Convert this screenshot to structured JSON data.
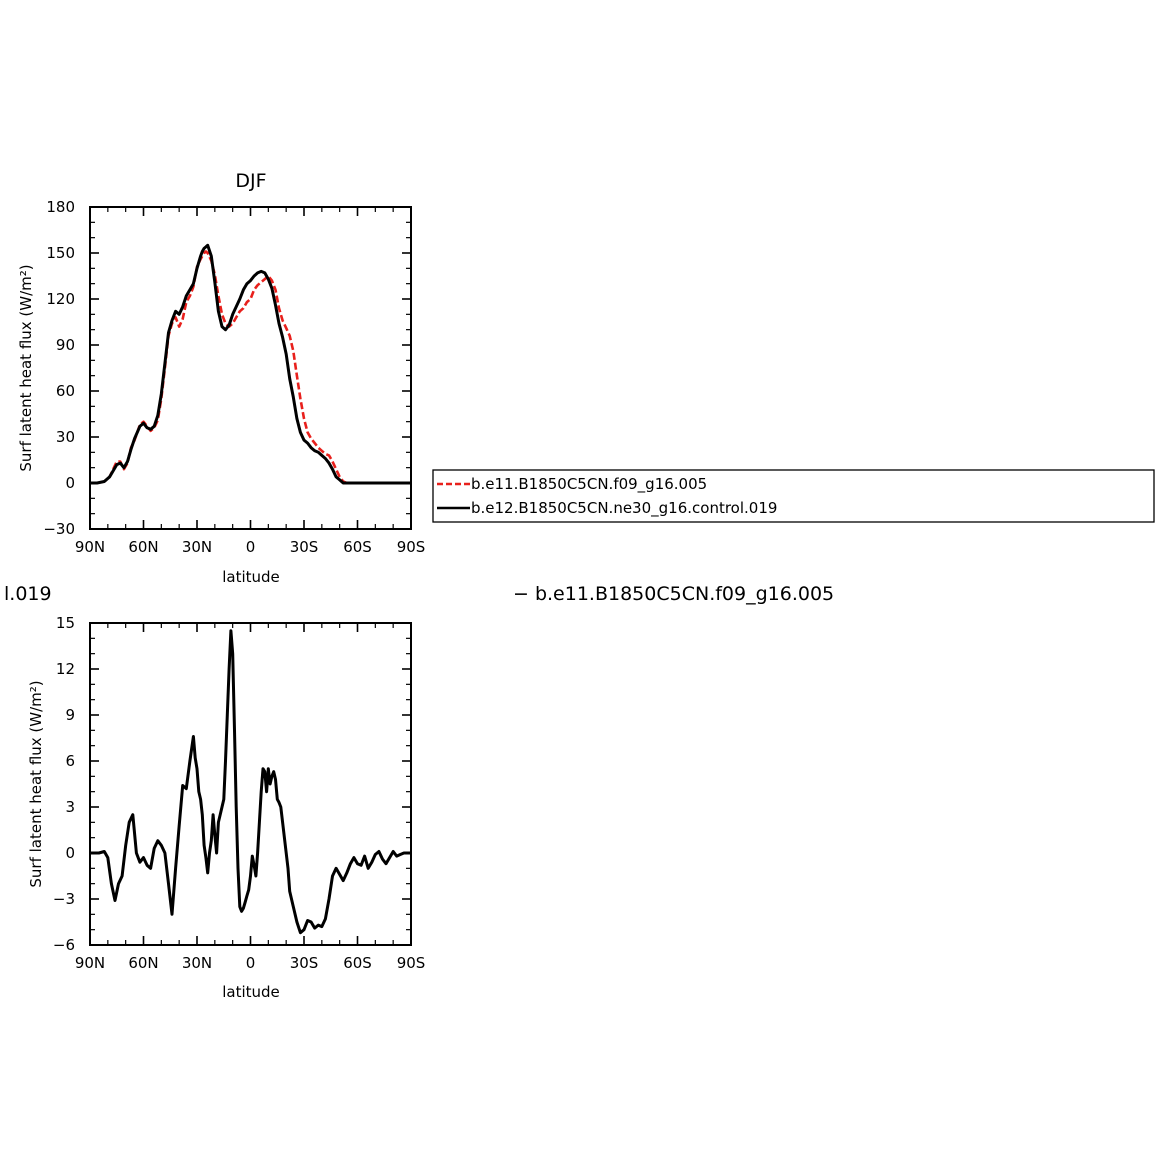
{
  "chart_data": [
    {
      "type": "line",
      "title": "DJF",
      "xlabel": "latitude",
      "ylabel": "Surf latent heat flux (W/m²)",
      "xlim": [
        90,
        -90
      ],
      "ylim": [
        -30,
        180
      ],
      "x_ticks": [
        90,
        60,
        30,
        0,
        -30,
        -60,
        -90
      ],
      "x_tick_labels": [
        "90N",
        "60N",
        "30N",
        "0",
        "30S",
        "60S",
        "90S"
      ],
      "y_ticks": [
        -30,
        0,
        30,
        60,
        90,
        120,
        150,
        180
      ],
      "y_tick_labels": [
        "−30",
        "0",
        "30",
        "60",
        "90",
        "120",
        "150",
        "180"
      ],
      "legend_position": "right",
      "series": [
        {
          "name": "b.e11.B1850C5CN.f09_g16.005",
          "color": "#e8201c",
          "dash": "dashed",
          "x": [
            90,
            86,
            82,
            79,
            77,
            75,
            73,
            71,
            69,
            67,
            65,
            62,
            60,
            58,
            56,
            54,
            52,
            50,
            48,
            46,
            44,
            42,
            40,
            38,
            36,
            34,
            32,
            30,
            28,
            27,
            26,
            25,
            24,
            22,
            20,
            18,
            16,
            14,
            12,
            10,
            8,
            6,
            4,
            2,
            0,
            -2,
            -4,
            -6,
            -8,
            -10,
            -12,
            -14,
            -16,
            -18,
            -20,
            -22,
            -24,
            -26,
            -28,
            -30,
            -32,
            -34,
            -36,
            -38,
            -40,
            -42,
            -44,
            -46,
            -48,
            -50,
            -52,
            -54,
            -56,
            -58,
            -60,
            -62,
            -64,
            -66,
            -68,
            -70,
            -72,
            -74,
            -76,
            -78,
            -80,
            -82,
            -84,
            -86,
            -88,
            -90
          ],
          "y": [
            0,
            0,
            1,
            4,
            9,
            14,
            14,
            9,
            13,
            23,
            28,
            38,
            40,
            37,
            34,
            36,
            41,
            55,
            75,
            96,
            104,
            108,
            102,
            107,
            118,
            122,
            128,
            141,
            146,
            148,
            150,
            151,
            150,
            145,
            136,
            122,
            110,
            104,
            102,
            104,
            108,
            112,
            114,
            118,
            120,
            126,
            129,
            131,
            133,
            135,
            132,
            126,
            114,
            106,
            101,
            96,
            86,
            70,
            55,
            42,
            33,
            29,
            26,
            23,
            21,
            19,
            18,
            14,
            9,
            4,
            1,
            0,
            0,
            0,
            0,
            0,
            0,
            0,
            0,
            0,
            0,
            0,
            0,
            0,
            0,
            0,
            0,
            0,
            0,
            0
          ]
        },
        {
          "name": "b.e12.B1850C5CN.ne30_g16.control.019",
          "color": "#000000",
          "dash": "solid",
          "x": [
            90,
            86,
            82,
            79,
            77,
            75,
            73,
            71,
            69,
            67,
            65,
            62,
            60,
            58,
            56,
            54,
            52,
            50,
            48,
            46,
            44,
            42,
            40,
            38,
            36,
            34,
            32,
            30,
            28,
            27,
            26,
            25,
            24,
            22,
            20,
            18,
            16,
            14,
            12,
            10,
            8,
            6,
            4,
            2,
            0,
            -2,
            -4,
            -6,
            -8,
            -10,
            -12,
            -14,
            -16,
            -18,
            -20,
            -22,
            -24,
            -26,
            -28,
            -30,
            -32,
            -34,
            -36,
            -38,
            -40,
            -42,
            -44,
            -46,
            -48,
            -50,
            -52,
            -54,
            -56,
            -58,
            -60,
            -62,
            -64,
            -66,
            -68,
            -70,
            -72,
            -74,
            -76,
            -78,
            -80,
            -82,
            -84,
            -86,
            -88,
            -90
          ],
          "y": [
            0,
            0,
            1,
            4,
            8,
            12,
            13,
            10,
            14,
            22,
            29,
            37,
            39,
            36,
            35,
            37,
            44,
            58,
            78,
            98,
            106,
            112,
            110,
            115,
            122,
            126,
            130,
            140,
            148,
            151,
            153,
            154,
            155,
            148,
            131,
            112,
            102,
            100,
            103,
            110,
            115,
            120,
            126,
            130,
            132,
            135,
            137,
            138,
            137,
            133,
            127,
            116,
            104,
            95,
            84,
            68,
            56,
            42,
            33,
            28,
            26,
            23,
            21,
            20,
            18,
            16,
            13,
            9,
            4,
            2,
            0,
            0,
            0,
            0,
            0,
            0,
            0,
            0,
            0,
            0,
            0,
            0,
            0,
            0,
            0,
            0,
            0,
            0,
            0,
            0
          ]
        }
      ]
    },
    {
      "type": "line",
      "title": "l.019",
      "title_right": "− b.e11.B1850C5CN.f09_g16.005",
      "xlabel": "latitude",
      "ylabel": "Surf latent heat flux (W/m²)",
      "xlim": [
        90,
        -90
      ],
      "ylim": [
        -6,
        15
      ],
      "x_ticks": [
        90,
        60,
        30,
        0,
        -30,
        -60,
        -90
      ],
      "x_tick_labels": [
        "90N",
        "60N",
        "30N",
        "0",
        "30S",
        "60S",
        "90S"
      ],
      "y_ticks": [
        -6,
        -3,
        0,
        3,
        6,
        9,
        12,
        15
      ],
      "y_tick_labels": [
        "−6",
        "−3",
        "0",
        "3",
        "6",
        "9",
        "12",
        "15"
      ],
      "series": [
        {
          "color": "#000000",
          "dash": "solid",
          "x": [
            90,
            85,
            82,
            80,
            78,
            76,
            74,
            72,
            70,
            68,
            66,
            64,
            62,
            60,
            58,
            56,
            54,
            52,
            50,
            48,
            46,
            44,
            42,
            40,
            38,
            36,
            34,
            32,
            31,
            30,
            29,
            28,
            27,
            26,
            25,
            24,
            23,
            22,
            21,
            20,
            19,
            18,
            17,
            16,
            15,
            14,
            13,
            12,
            11,
            10,
            9,
            8,
            7,
            6,
            5,
            4,
            3,
            2,
            1,
            0,
            -1,
            -2,
            -3,
            -4,
            -5,
            -6,
            -7,
            -8,
            -9,
            -10,
            -11,
            -12,
            -13,
            -14,
            -15,
            -16,
            -17,
            -18,
            -19,
            -20,
            -21,
            -22,
            -24,
            -26,
            -28,
            -30,
            -32,
            -34,
            -36,
            -38,
            -40,
            -42,
            -44,
            -46,
            -48,
            -50,
            -52,
            -54,
            -56,
            -58,
            -60,
            -62,
            -64,
            -66,
            -68,
            -70,
            -72,
            -74,
            -76,
            -78,
            -80,
            -82,
            -84,
            -86,
            -88,
            -90
          ],
          "y": [
            0,
            0,
            0.1,
            -0.3,
            -2.0,
            -3.1,
            -2.0,
            -1.5,
            0.5,
            2.0,
            2.5,
            0.0,
            -0.6,
            -0.3,
            -0.8,
            -1.0,
            0.3,
            0.8,
            0.5,
            0.0,
            -2.0,
            -4.0,
            -1.0,
            1.8,
            4.4,
            4.2,
            6.0,
            7.6,
            6.2,
            5.5,
            4.0,
            3.5,
            2.5,
            0.5,
            -0.3,
            -1.3,
            0.0,
            0.8,
            2.5,
            1.2,
            0.0,
            2.0,
            2.5,
            3.0,
            3.5,
            6.0,
            9.0,
            12.0,
            14.5,
            13.0,
            8.0,
            3.0,
            -1.0,
            -3.5,
            -3.8,
            -3.6,
            -3.2,
            -2.8,
            -2.4,
            -1.5,
            -0.2,
            -0.8,
            -1.5,
            0.0,
            2.0,
            4.0,
            5.5,
            5.3,
            4.0,
            5.5,
            4.5,
            5.0,
            5.3,
            4.8,
            3.5,
            3.3,
            3.0,
            2.0,
            1.0,
            0.0,
            -1.0,
            -2.5,
            -3.5,
            -4.5,
            -5.2,
            -5.0,
            -4.4,
            -4.5,
            -4.9,
            -4.7,
            -4.8,
            -4.3,
            -3.0,
            -1.5,
            -1.0,
            -1.4,
            -1.8,
            -1.3,
            -0.7,
            -0.3,
            -0.7,
            -0.8,
            -0.2,
            -1.0,
            -0.6,
            -0.1,
            0.1,
            -0.4,
            -0.7,
            -0.3,
            0.1,
            -0.2,
            -0.1,
            0,
            0,
            0
          ]
        }
      ]
    }
  ]
}
